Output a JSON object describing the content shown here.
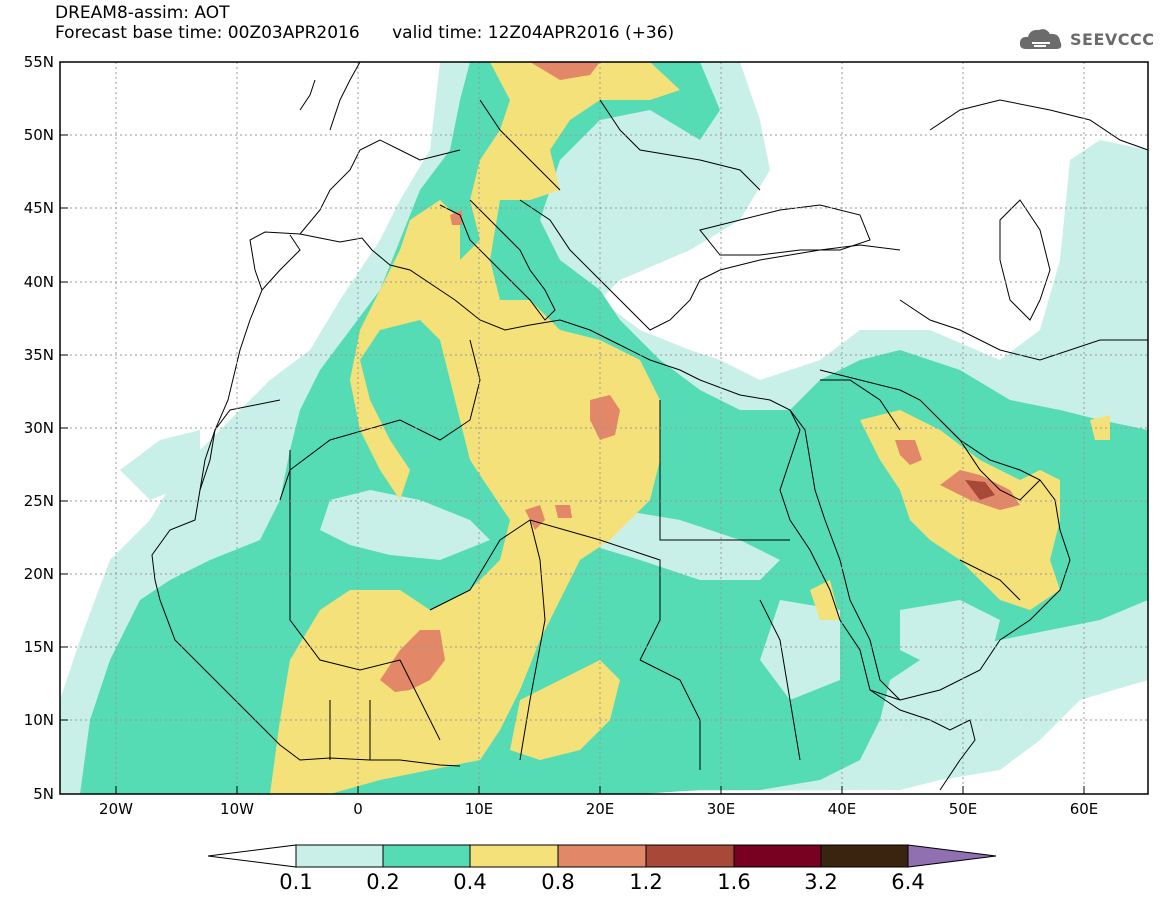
{
  "header": {
    "line1": "DREAM8-assim: AOT",
    "line2": "Forecast base time: 00Z03APR2016      valid time: 12Z04APR2016 (+36)"
  },
  "logo": {
    "text": "SEEVCCC",
    "icon": "cloud-icon"
  },
  "map": {
    "lat_labels": [
      "55N",
      "50N",
      "45N",
      "40N",
      "35N",
      "30N",
      "25N",
      "20N",
      "15N",
      "10N",
      "5N"
    ],
    "lon_labels": [
      "20W",
      "10W",
      "0",
      "10E",
      "20E",
      "30E",
      "40E",
      "50E",
      "60E"
    ],
    "lat_range": [
      5,
      55
    ],
    "lon_range": [
      -25,
      65
    ],
    "grid": true
  },
  "colorbar": {
    "labels": [
      "0.1",
      "0.2",
      "0.4",
      "0.8",
      "1.2",
      "1.6",
      "3.2",
      "6.4"
    ],
    "colors": {
      "lt_0_1": "#ffffff",
      "c_0_1_0_2": "#c8f0e8",
      "c_0_2_0_4": "#55dcb4",
      "c_0_4_0_8": "#f5e17a",
      "c_0_8_1_2": "#e28868",
      "c_1_2_1_6": "#a84838",
      "c_1_6_3_2": "#780020",
      "c_3_2_6_4": "#3a2410",
      "gt_6_4": "#9070b0"
    }
  }
}
